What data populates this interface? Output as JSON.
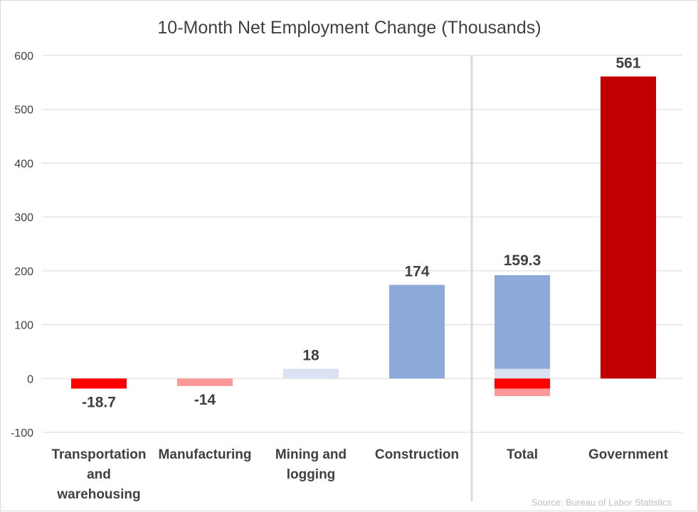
{
  "chart_data": {
    "type": "bar",
    "title": "10-Month Net Employment Change (Thousands)",
    "xlabel": "",
    "ylabel": "",
    "ylim": [
      -100,
      600
    ],
    "yticks": [
      600,
      500,
      400,
      300,
      200,
      100,
      0,
      -100
    ],
    "grid": true,
    "legend": "none",
    "categories": [
      "Transportation and warehousing",
      "Manufacturing",
      "Mining and logging",
      "Construction",
      "Total",
      "Government"
    ],
    "category_label_lines": [
      [
        "Transportation",
        "and",
        "warehousing"
      ],
      [
        "Manufacturing"
      ],
      [
        "Mining and",
        "logging"
      ],
      [
        "Construction"
      ],
      [
        "Total"
      ],
      [
        "Government"
      ]
    ],
    "values": [
      -18.7,
      -14,
      18,
      174,
      159.3,
      561
    ],
    "data_labels": [
      "-18.7",
      "-14",
      "18",
      "174",
      "159.3",
      "561"
    ],
    "colors": [
      "#ff0000",
      "#ff9999",
      "#d9e1f2",
      "#8eaadb",
      null,
      "#c00000"
    ],
    "total_breakdown": [
      {
        "component": "Mining and logging",
        "value": 18,
        "color": "#d9e1f2"
      },
      {
        "component": "Construction",
        "value": 174,
        "color": "#8eaadb"
      },
      {
        "component": "Transportation and warehousing",
        "value": -18.7,
        "color": "#ff0000"
      },
      {
        "component": "Manufacturing",
        "value": -14,
        "color": "#ff9999"
      }
    ],
    "annotations": [
      "Source: Bureau of Labor Statistics"
    ]
  }
}
